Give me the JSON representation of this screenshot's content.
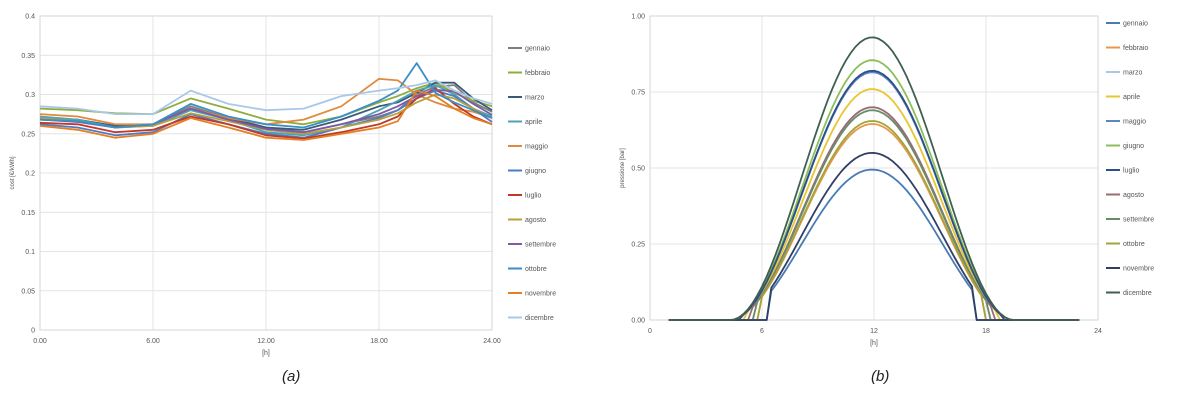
{
  "captions": {
    "a": "(a)",
    "b": "(b)"
  },
  "chart_data": [
    {
      "type": "line",
      "title": "",
      "xlabel": "[h]",
      "ylabel": "cost [€/kWh]",
      "xlim": [
        0,
        24
      ],
      "ylim": [
        0,
        0.4
      ],
      "xticks": [
        0,
        6,
        12,
        18,
        24
      ],
      "xtick_labels": [
        "0.00",
        "6.00",
        "12.00",
        "18.00",
        "24.00"
      ],
      "yticks": [
        0,
        0.05,
        0.1,
        0.15,
        0.2,
        0.25,
        0.3,
        0.35,
        0.4
      ],
      "ytick_labels": [
        "0",
        "0.05",
        "0.1",
        "0.15",
        "0.2",
        "0.25",
        "0.3",
        "0.35",
        "0.4"
      ],
      "grid": true,
      "legend": "right",
      "x": [
        0,
        2,
        4,
        6,
        8,
        10,
        12,
        14,
        16,
        18,
        19,
        20,
        21,
        22,
        23,
        24
      ],
      "series": [
        {
          "name": "gennaio",
          "color": "#7f7f7f",
          "values": [
            0.268,
            0.266,
            0.26,
            0.262,
            0.285,
            0.27,
            0.258,
            0.252,
            0.262,
            0.272,
            0.28,
            0.3,
            0.31,
            0.312,
            0.29,
            0.278
          ]
        },
        {
          "name": "febbraio",
          "color": "#8fad3c",
          "values": [
            0.282,
            0.28,
            0.276,
            0.275,
            0.295,
            0.282,
            0.268,
            0.262,
            0.272,
            0.29,
            0.298,
            0.308,
            0.315,
            0.302,
            0.292,
            0.285
          ]
        },
        {
          "name": "marzo",
          "color": "#3b5a7a",
          "values": [
            0.27,
            0.268,
            0.26,
            0.262,
            0.282,
            0.27,
            0.258,
            0.255,
            0.268,
            0.285,
            0.29,
            0.302,
            0.315,
            0.315,
            0.295,
            0.28
          ]
        },
        {
          "name": "aprile",
          "color": "#4aa3b8",
          "values": [
            0.272,
            0.268,
            0.258,
            0.26,
            0.28,
            0.268,
            0.252,
            0.248,
            0.258,
            0.28,
            0.292,
            0.305,
            0.312,
            0.3,
            0.282,
            0.272
          ]
        },
        {
          "name": "maggio",
          "color": "#e08a3c",
          "values": [
            0.275,
            0.272,
            0.262,
            0.262,
            0.282,
            0.27,
            0.262,
            0.268,
            0.285,
            0.32,
            0.318,
            0.3,
            0.29,
            0.282,
            0.278,
            0.27
          ]
        },
        {
          "name": "giugno",
          "color": "#4d7cc4",
          "values": [
            0.262,
            0.258,
            0.248,
            0.252,
            0.275,
            0.262,
            0.25,
            0.245,
            0.258,
            0.27,
            0.28,
            0.295,
            0.305,
            0.298,
            0.282,
            0.265
          ]
        },
        {
          "name": "luglio",
          "color": "#c0392b",
          "values": [
            0.264,
            0.262,
            0.252,
            0.255,
            0.272,
            0.262,
            0.248,
            0.244,
            0.252,
            0.262,
            0.272,
            0.295,
            0.308,
            0.288,
            0.272,
            0.262
          ]
        },
        {
          "name": "agosto",
          "color": "#b8a03c",
          "values": [
            0.27,
            0.266,
            0.258,
            0.26,
            0.276,
            0.266,
            0.255,
            0.25,
            0.258,
            0.268,
            0.276,
            0.29,
            0.3,
            0.295,
            0.282,
            0.27
          ]
        },
        {
          "name": "settembre",
          "color": "#7e5aa8",
          "values": [
            0.268,
            0.265,
            0.258,
            0.262,
            0.282,
            0.268,
            0.256,
            0.252,
            0.262,
            0.275,
            0.285,
            0.298,
            0.306,
            0.304,
            0.288,
            0.274
          ]
        },
        {
          "name": "ottobre",
          "color": "#3a8fc6",
          "values": [
            0.268,
            0.266,
            0.258,
            0.262,
            0.288,
            0.272,
            0.262,
            0.258,
            0.272,
            0.292,
            0.305,
            0.34,
            0.302,
            0.29,
            0.28,
            0.27
          ]
        },
        {
          "name": "novembre",
          "color": "#e67e22",
          "values": [
            0.26,
            0.255,
            0.245,
            0.25,
            0.27,
            0.258,
            0.245,
            0.242,
            0.25,
            0.258,
            0.266,
            0.305,
            0.298,
            0.282,
            0.27,
            0.262
          ]
        },
        {
          "name": "dicembre",
          "color": "#a9c8e8",
          "values": [
            0.285,
            0.282,
            0.275,
            0.275,
            0.305,
            0.288,
            0.28,
            0.282,
            0.298,
            0.305,
            0.308,
            0.312,
            0.318,
            0.305,
            0.295,
            0.288
          ]
        }
      ]
    },
    {
      "type": "line",
      "title": "",
      "xlabel": "[h]",
      "ylabel": "pressione [bar]",
      "xlim": [
        0,
        24
      ],
      "ylim": [
        0,
        1
      ],
      "xticks": [
        0,
        6,
        12,
        18,
        24
      ],
      "xtick_labels": [
        "0",
        "6",
        "12",
        "18",
        "24"
      ],
      "yticks": [
        0,
        0.25,
        0.5,
        0.75,
        1.0
      ],
      "ytick_labels": [
        "0.00",
        "0.25",
        "0.50",
        "0.75",
        "1.00"
      ],
      "grid": true,
      "legend": "right",
      "shape": {
        "center": 11.9,
        "width": 15.2
      },
      "series": [
        {
          "name": "gennaio",
          "color": "#4a7ab5",
          "peak": 0.495,
          "start": 6.4,
          "end": 17.4
        },
        {
          "name": "febbraio",
          "color": "#e39a4c",
          "peak": 0.645,
          "start": 5.9,
          "end": 17.9
        },
        {
          "name": "marzo",
          "color": "#a9c8e8",
          "peak": 0.7,
          "start": 5.6,
          "end": 18.2
        },
        {
          "name": "aprile",
          "color": "#e8c630",
          "peak": 0.76,
          "start": 5.2,
          "end": 18.6
        },
        {
          "name": "maggio",
          "color": "#5a86c6",
          "peak": 0.815,
          "start": 4.9,
          "end": 18.9
        },
        {
          "name": "giugno",
          "color": "#8cbf5a",
          "peak": 0.855,
          "start": 4.6,
          "end": 19.2
        },
        {
          "name": "luglio",
          "color": "#2e4f86",
          "peak": 0.82,
          "start": 4.8,
          "end": 19.0
        },
        {
          "name": "agosto",
          "color": "#9d6c72",
          "peak": 0.7,
          "start": 5.4,
          "end": 18.5
        },
        {
          "name": "settembre",
          "color": "#6a8a6a",
          "peak": 0.69,
          "start": 5.6,
          "end": 18.2
        },
        {
          "name": "ottobre",
          "color": "#a8a23c",
          "peak": 0.655,
          "start": 5.9,
          "end": 17.9
        },
        {
          "name": "novembre",
          "color": "#2f3f66",
          "peak": 0.55,
          "start": 6.3,
          "end": 17.5
        },
        {
          "name": "dicembre",
          "color": "#3f5f4f",
          "peak": 0.93,
          "start": 4.3,
          "end": 19.4
        }
      ]
    }
  ]
}
